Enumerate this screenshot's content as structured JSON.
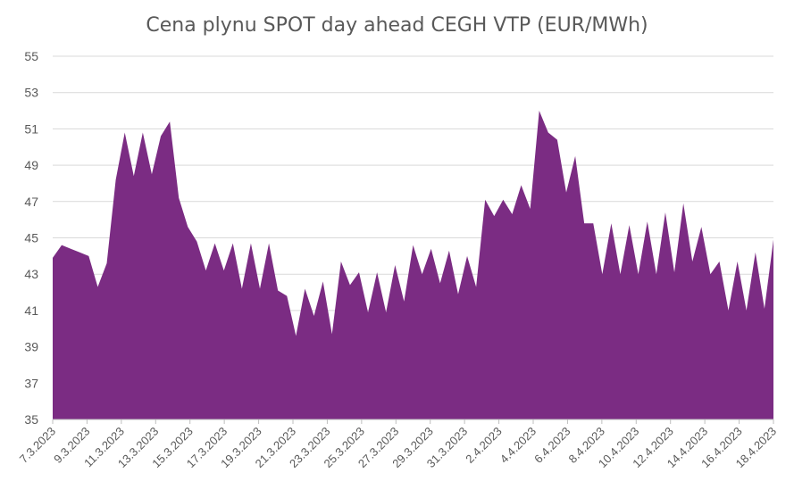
{
  "chart_data": {
    "type": "area",
    "title": "Cena plynu SPOT day ahead CEGH VTP (EUR/MWh)",
    "xlabel": "",
    "ylabel": "",
    "ylim": [
      35,
      55
    ],
    "yticks": [
      35,
      37,
      39,
      41,
      43,
      45,
      47,
      49,
      51,
      53,
      55
    ],
    "grid": true,
    "legend": "none",
    "fill_color": "#7B2C83",
    "x_labels": [
      "7.3.2023",
      "9.3.2023",
      "11.3.2023",
      "13.3.2023",
      "15.3.2023",
      "17.3.2023",
      "19.3.2023",
      "21.3.2023",
      "23.3.2023",
      "25.3.2023",
      "27.3.2023",
      "29.3.2023",
      "31.3.2023",
      "2.4.2023",
      "4.4.2023",
      "6.4.2023",
      "8.4.2023",
      "10.4.2023",
      "12.4.2023",
      "14.4.2023",
      "16.4.2023",
      "18.4.2023"
    ],
    "series": [
      {
        "values": [
          43.9,
          44.6,
          44.4,
          44.2,
          44.0,
          42.3,
          43.6,
          48.2,
          50.8,
          48.4,
          50.8,
          48.5,
          50.6,
          51.4,
          47.2,
          45.6,
          44.8,
          43.2,
          44.7,
          43.2,
          44.7,
          42.2,
          44.7,
          42.2,
          44.7,
          42.1,
          41.8,
          39.6,
          42.2,
          40.7,
          42.6,
          39.7,
          43.7,
          42.4,
          43.1,
          40.9,
          43.1,
          40.9,
          43.5,
          41.5,
          44.6,
          43.0,
          44.4,
          42.5,
          44.3,
          41.9,
          44.0,
          42.3,
          47.1,
          46.2,
          47.1,
          46.3,
          47.9,
          46.6,
          52.0,
          50.8,
          50.4,
          47.5,
          49.5,
          45.8,
          45.8,
          43.0,
          45.8,
          43.0,
          45.7,
          43.0,
          45.9,
          43.0,
          46.4,
          43.1,
          46.9,
          43.7,
          45.6,
          43.0,
          43.7,
          41.0,
          43.7,
          41.0,
          44.2,
          41.1,
          44.9
        ]
      }
    ]
  }
}
